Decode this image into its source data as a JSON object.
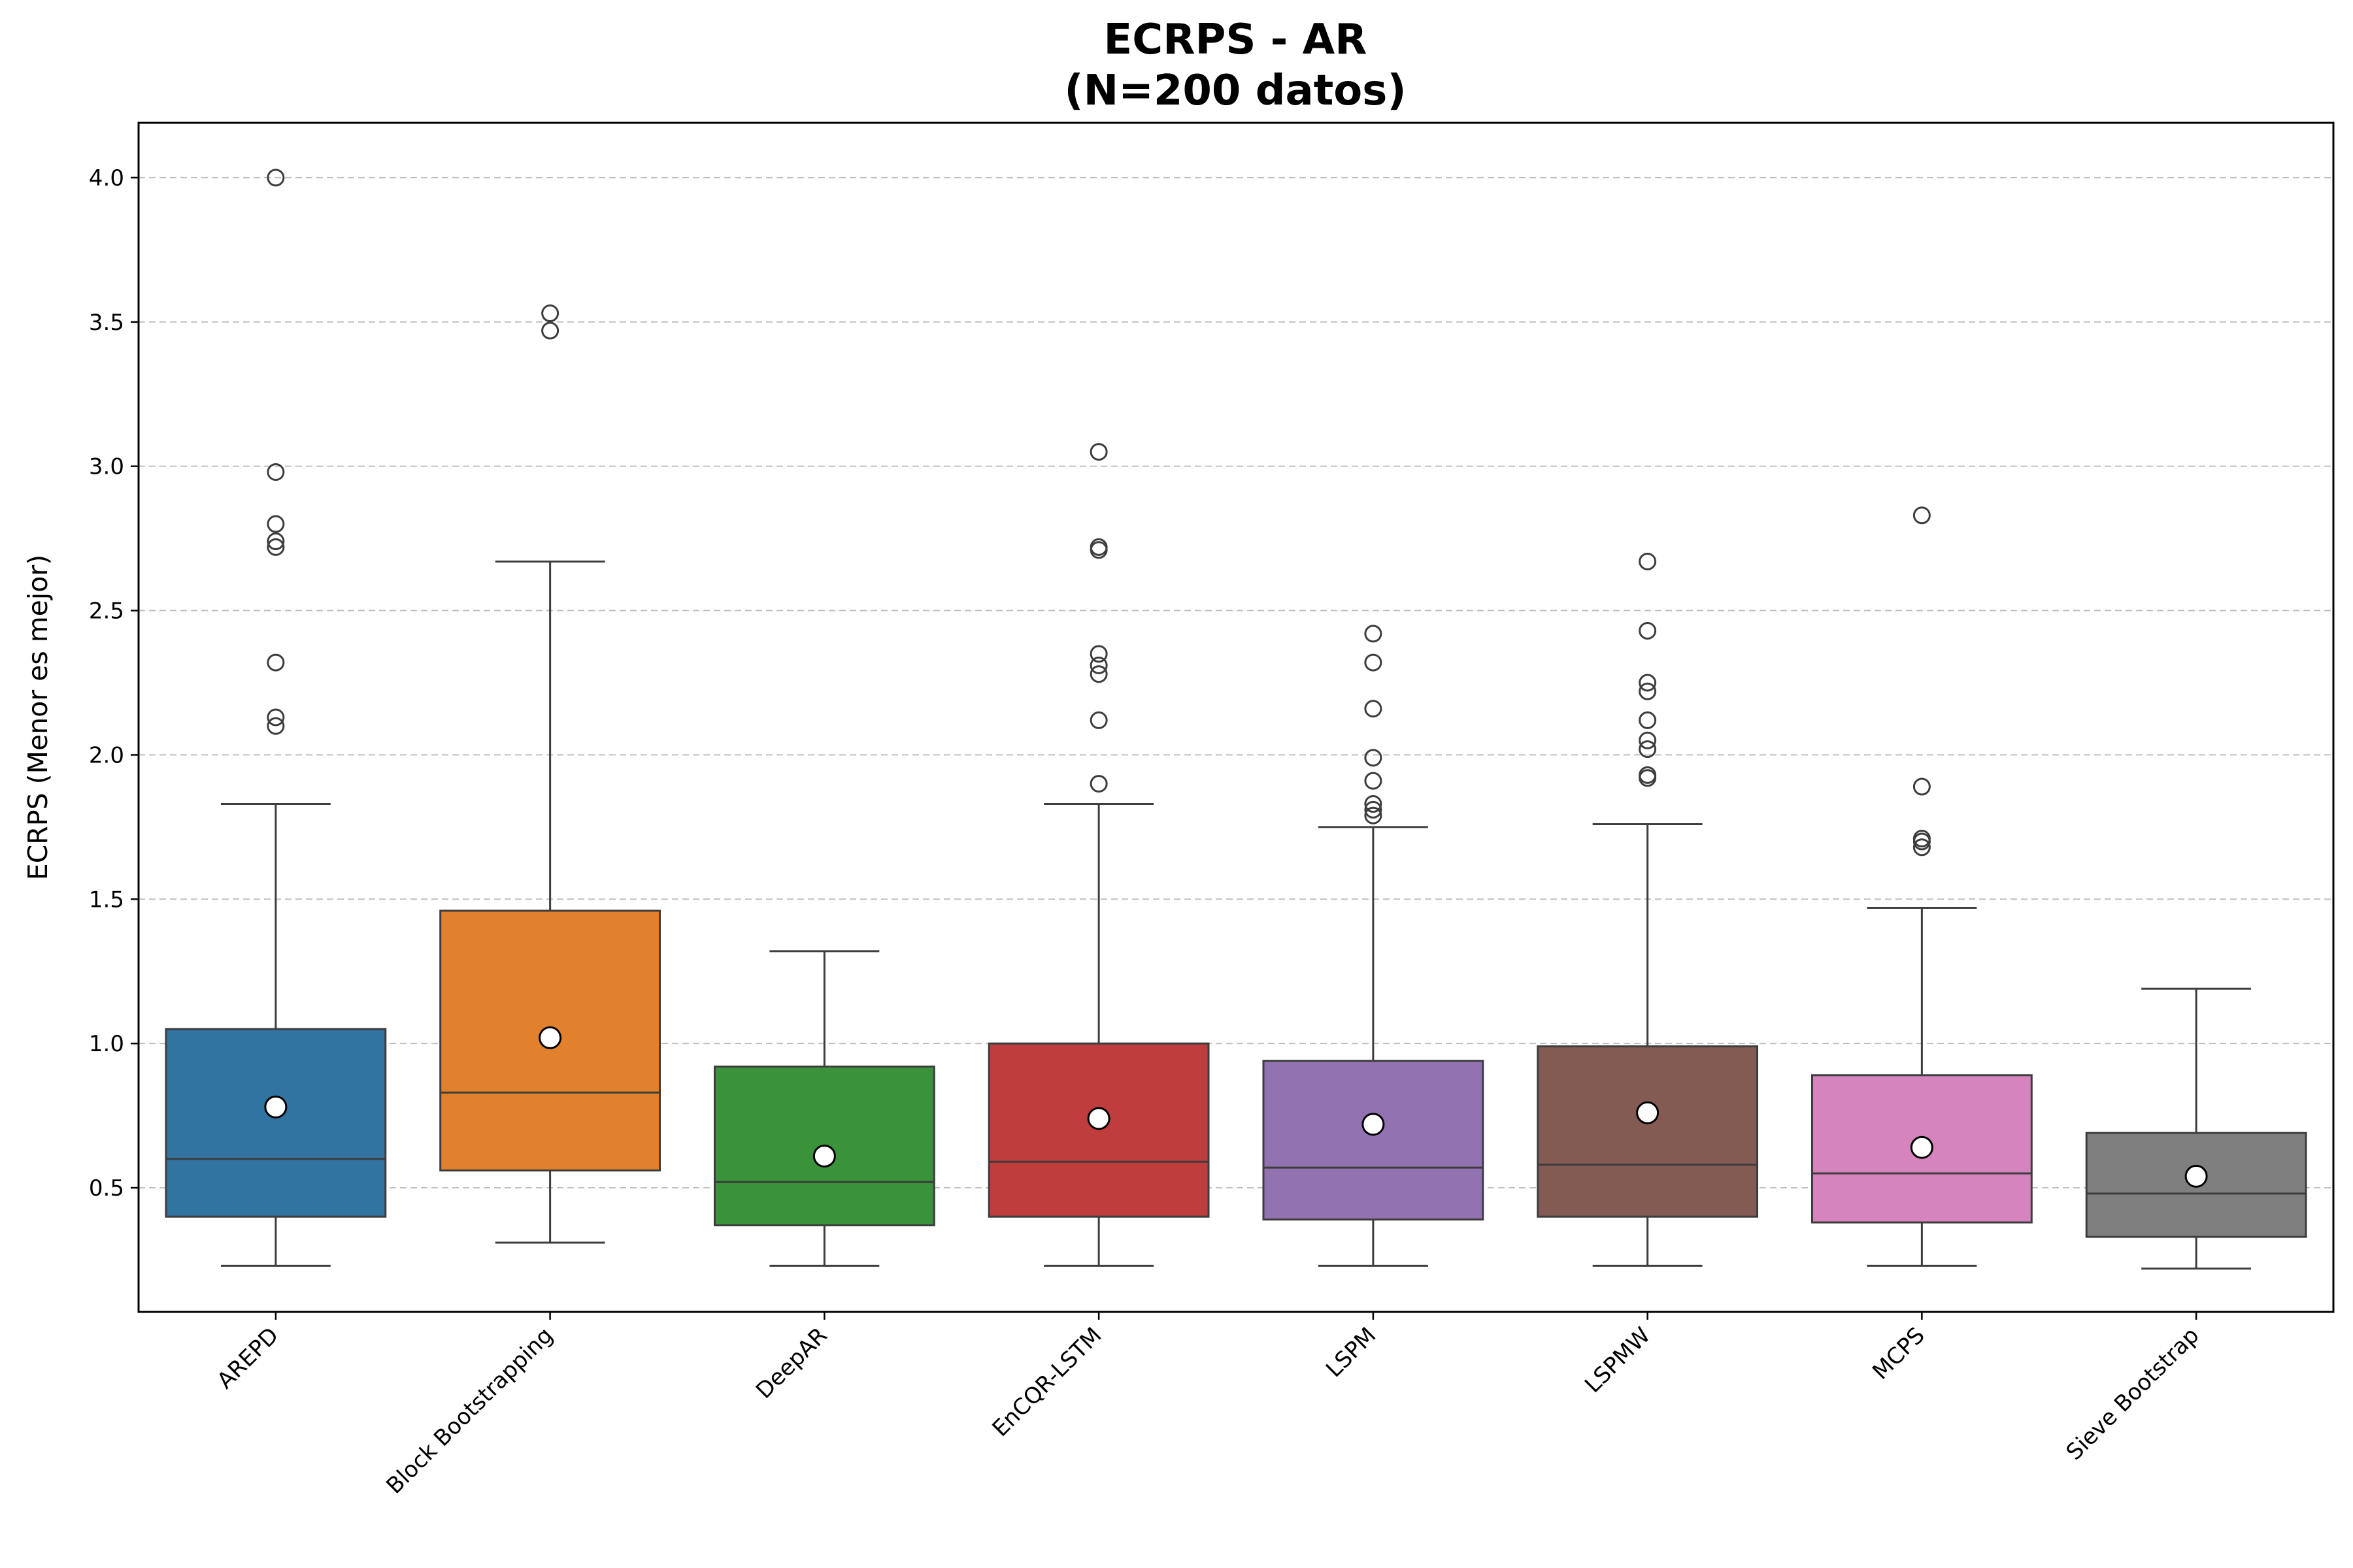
{
  "chart_data": {
    "type": "box",
    "title": [
      "ECRPS - AR",
      "(N=200 datos)"
    ],
    "xlabel": "",
    "ylabel": "ECRPS (Menor es mejor)",
    "ylim": [
      0.07,
      4.19
    ],
    "yticks": [
      0.5,
      1.0,
      1.5,
      2.0,
      2.5,
      3.0,
      3.5,
      4.0
    ],
    "ytick_labels": [
      "0.5",
      "1.0",
      "1.5",
      "2.0",
      "2.5",
      "3.0",
      "3.5",
      "4.0"
    ],
    "grid": "y dashed",
    "categories": [
      "AREPD",
      "Block Bootstrapping",
      "DeepAR",
      "EnCQR-LSTM",
      "LSPM",
      "LSPMW",
      "MCPS",
      "Sieve Bootstrap"
    ],
    "series": [
      {
        "name": "AREPD",
        "color": "#3274a1",
        "whisker_low": 0.23,
        "q1": 0.4,
        "median": 0.6,
        "q3": 1.05,
        "whisker_high": 1.83,
        "mean": 0.78,
        "outliers": [
          4.0,
          2.98,
          2.8,
          2.74,
          2.72,
          2.32,
          2.13,
          2.1
        ]
      },
      {
        "name": "Block Bootstrapping",
        "color": "#e1812c",
        "whisker_low": 0.31,
        "q1": 0.56,
        "median": 0.83,
        "q3": 1.46,
        "whisker_high": 2.67,
        "mean": 1.02,
        "outliers": [
          3.53,
          3.47
        ]
      },
      {
        "name": "DeepAR",
        "color": "#3a923a",
        "whisker_low": 0.23,
        "q1": 0.37,
        "median": 0.52,
        "q3": 0.92,
        "whisker_high": 1.32,
        "mean": 0.61,
        "outliers": []
      },
      {
        "name": "EnCQR-LSTM",
        "color": "#c03d3e",
        "whisker_low": 0.23,
        "q1": 0.4,
        "median": 0.59,
        "q3": 1.0,
        "whisker_high": 1.83,
        "mean": 0.74,
        "outliers": [
          3.05,
          2.72,
          2.71,
          2.35,
          2.31,
          2.28,
          2.12,
          1.9
        ]
      },
      {
        "name": "LSPM",
        "color": "#9372b2",
        "whisker_low": 0.23,
        "q1": 0.39,
        "median": 0.57,
        "q3": 0.94,
        "whisker_high": 1.75,
        "mean": 0.72,
        "outliers": [
          2.42,
          2.32,
          2.16,
          1.99,
          1.91,
          1.83,
          1.81,
          1.79
        ]
      },
      {
        "name": "LSPMW",
        "color": "#845b53",
        "whisker_low": 0.23,
        "q1": 0.4,
        "median": 0.58,
        "q3": 0.99,
        "whisker_high": 1.76,
        "mean": 0.76,
        "outliers": [
          2.67,
          2.43,
          2.25,
          2.22,
          2.12,
          2.05,
          2.02,
          1.93,
          1.92
        ]
      },
      {
        "name": "MCPS",
        "color": "#d684bd",
        "whisker_low": 0.23,
        "q1": 0.38,
        "median": 0.55,
        "q3": 0.89,
        "whisker_high": 1.47,
        "mean": 0.64,
        "outliers": [
          2.83,
          1.89,
          1.71,
          1.7,
          1.68
        ]
      },
      {
        "name": "Sieve Bootstrap",
        "color": "#7f7f7f",
        "whisker_low": 0.22,
        "q1": 0.33,
        "median": 0.48,
        "q3": 0.69,
        "whisker_high": 1.19,
        "mean": 0.54,
        "outliers": []
      }
    ]
  }
}
